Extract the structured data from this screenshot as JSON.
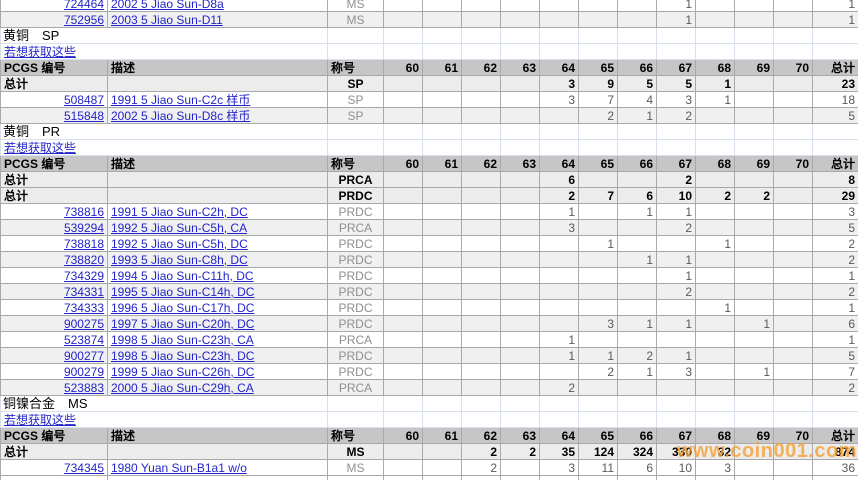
{
  "watermark": "www.coin001.com",
  "link_label": "若想获取这些",
  "totals_label": "总计",
  "columns": {
    "pcgs": "PCGS 编号",
    "desc": "描述",
    "desig": "称号",
    "total": "总计"
  },
  "grade_columns": [
    "60",
    "61",
    "62",
    "63",
    "64",
    "65",
    "66",
    "67",
    "68",
    "69",
    "70"
  ],
  "leading_rows": [
    {
      "pcgs": "724464",
      "desc": "2002 5 Jiao Sun-D8a",
      "desig": "MS",
      "grades": {
        "67": 1
      },
      "total": 1
    },
    {
      "pcgs": "752956",
      "desc": "2003 5 Jiao Sun-D11",
      "desig": "MS",
      "grades": {
        "67": 1
      },
      "total": 1
    }
  ],
  "sections": [
    {
      "title": "黄铜　SP",
      "totals": [
        {
          "desig": "SP",
          "grades": {
            "64": 3,
            "65": 9,
            "66": 5,
            "67": 5,
            "68": 1
          },
          "total": 23
        }
      ],
      "rows": [
        {
          "pcgs": "508487",
          "desc": "1991 5 Jiao Sun-C2c 样币",
          "desig": "SP",
          "grades": {
            "64": 3,
            "65": 7,
            "66": 4,
            "67": 3,
            "68": 1
          },
          "total": 18
        },
        {
          "pcgs": "515848",
          "desc": "2002 5 Jiao Sun-D8c 样币",
          "desig": "SP",
          "grades": {
            "65": 2,
            "66": 1,
            "67": 2
          },
          "total": 5
        }
      ]
    },
    {
      "title": "黄铜　PR",
      "totals": [
        {
          "desig": "PRCA",
          "grades": {
            "64": 6,
            "67": 2
          },
          "total": 8
        },
        {
          "desig": "PRDC",
          "grades": {
            "64": 2,
            "65": 7,
            "66": 6,
            "67": 10,
            "68": 2,
            "69": 2
          },
          "total": 29
        }
      ],
      "rows": [
        {
          "pcgs": "738816",
          "desc": "1991 5 Jiao Sun-C2h, DC",
          "desig": "PRDC",
          "grades": {
            "64": 1,
            "66": 1,
            "67": 1
          },
          "total": 3
        },
        {
          "pcgs": "539294",
          "desc": "1992 5 Jiao Sun-C5h, CA",
          "desig": "PRCA",
          "grades": {
            "64": 3,
            "67": 2
          },
          "total": 5
        },
        {
          "pcgs": "738818",
          "desc": "1992 5 Jiao Sun-C5h, DC",
          "desig": "PRDC",
          "grades": {
            "65": 1,
            "68": 1
          },
          "total": 2
        },
        {
          "pcgs": "738820",
          "desc": "1993 5 Jiao Sun-C8h, DC",
          "desig": "PRDC",
          "grades": {
            "66": 1,
            "67": 1
          },
          "total": 2
        },
        {
          "pcgs": "734329",
          "desc": "1994 5 Jiao Sun-C11h, DC",
          "desig": "PRDC",
          "grades": {
            "67": 1
          },
          "total": 1
        },
        {
          "pcgs": "734331",
          "desc": "1995 5 Jiao Sun-C14h, DC",
          "desig": "PRDC",
          "grades": {
            "67": 2
          },
          "total": 2
        },
        {
          "pcgs": "734333",
          "desc": "1996 5 Jiao Sun-C17h, DC",
          "desig": "PRDC",
          "grades": {
            "68": 1
          },
          "total": 1
        },
        {
          "pcgs": "900275",
          "desc": "1997 5 Jiao Sun-C20h, DC",
          "desig": "PRDC",
          "grades": {
            "65": 3,
            "66": 1,
            "67": 1,
            "69": 1
          },
          "total": 6
        },
        {
          "pcgs": "523874",
          "desc": "1998 5 Jiao Sun-C23h, CA",
          "desig": "PRCA",
          "grades": {
            "64": 1
          },
          "total": 1
        },
        {
          "pcgs": "900277",
          "desc": "1998 5 Jiao Sun-C23h, DC",
          "desig": "PRDC",
          "grades": {
            "64": 1,
            "65": 1,
            "66": 2,
            "67": 1
          },
          "total": 5
        },
        {
          "pcgs": "900279",
          "desc": "1999 5 Jiao Sun-C26h, DC",
          "desig": "PRDC",
          "grades": {
            "65": 2,
            "66": 1,
            "67": 3,
            "69": 1
          },
          "total": 7
        },
        {
          "pcgs": "523883",
          "desc": "2000 5 Jiao Sun-C29h, CA",
          "desig": "PRCA",
          "grades": {
            "64": 2
          },
          "total": 2
        }
      ]
    },
    {
      "title": "铜镍合金　MS",
      "totals": [
        {
          "desig": "MS",
          "grades": {
            "62": 2,
            "63": 2,
            "64": 35,
            "65": 124,
            "66": 324,
            "67": 330,
            "68": 32
          },
          "total": 874
        }
      ],
      "rows": [
        {
          "pcgs": "734345",
          "desc": "1980 Yuan Sun-B1a1 w/o",
          "desig": "MS",
          "grades": {
            "62": 2,
            "64": 3,
            "65": 11,
            "66": 6,
            "67": 10,
            "68": 3
          },
          "total": 36
        }
      ]
    }
  ]
}
